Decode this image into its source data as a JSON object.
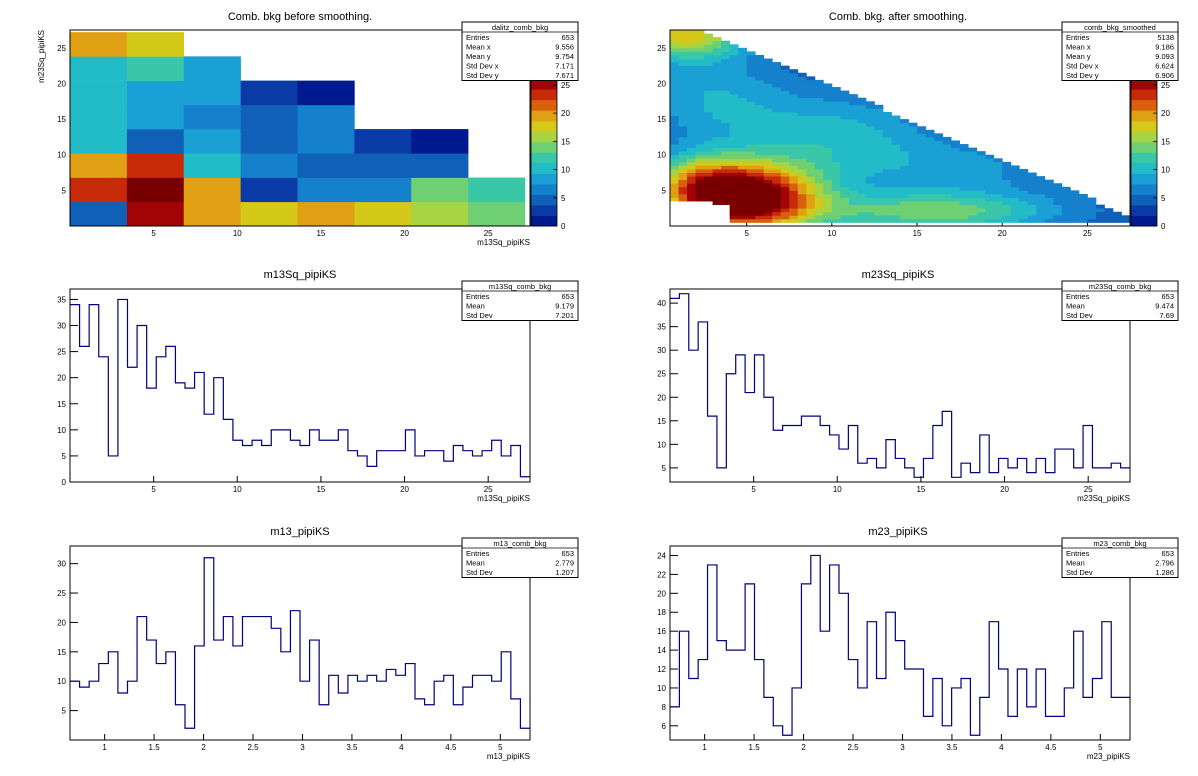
{
  "colors": {
    "hist_line": "#000080",
    "frame": "#000000",
    "palette": [
      "#01198f",
      "#0a3aa5",
      "#1060b8",
      "#1580cc",
      "#1aa0d5",
      "#22bcc8",
      "#3ac7a8",
      "#6fcf73",
      "#a6d443",
      "#d4c819",
      "#e0a013",
      "#d8600c",
      "#c62a08",
      "#a00405",
      "#780000"
    ]
  },
  "chart_data": [
    {
      "id": "dalitz",
      "type": "heatmap",
      "title": "Comb. bkg before smoothing.",
      "xlabel": "m13Sq_pipiKS",
      "ylabel": "m23Sq_pipiKS",
      "xlim": [
        0,
        27.5
      ],
      "ylim": [
        0,
        27.5
      ],
      "xticks": [
        "5",
        "10",
        "15",
        "20",
        "25"
      ],
      "yticks": [
        "5",
        "10",
        "15",
        "20",
        "25"
      ],
      "zlim": [
        0,
        28
      ],
      "zticks": [
        "0",
        "5",
        "10",
        "15",
        "20",
        "25"
      ],
      "bin_width": 3.4,
      "rows": [
        [
          4,
          26,
          20,
          18,
          19,
          18,
          16,
          14
        ],
        [
          24,
          28,
          20,
          3,
          7,
          6,
          14,
          12
        ],
        [
          19,
          23,
          11,
          7,
          5,
          5,
          4,
          null
        ],
        [
          11,
          4,
          8,
          5,
          7,
          2,
          1,
          null
        ],
        [
          10,
          8,
          7,
          4,
          7,
          null,
          null,
          null
        ],
        [
          10,
          8,
          9,
          3,
          1,
          null,
          null,
          null
        ],
        [
          11,
          12,
          9,
          null,
          null,
          null,
          null,
          null
        ],
        [
          20,
          18,
          null,
          null,
          null,
          null,
          null,
          null
        ]
      ],
      "stats": {
        "name": "dalitz_comb_bkg",
        "rows": [
          [
            "Entries",
            "653"
          ],
          [
            "Mean x",
            "9.556"
          ],
          [
            "Mean y",
            "9.754"
          ],
          [
            "Std Dev x",
            "7.171"
          ],
          [
            "Std Dev y",
            "7.671"
          ]
        ]
      }
    },
    {
      "id": "smoothed",
      "type": "heatmap",
      "title": "Comb. bkg. after smoothing.",
      "xlabel": "",
      "ylabel": "",
      "xlim": [
        0.5,
        27.5
      ],
      "ylim": [
        0,
        27.5
      ],
      "xticks": [
        "5",
        "10",
        "15",
        "20",
        "25"
      ],
      "yticks": [
        "5",
        "10",
        "15",
        "20",
        "25"
      ],
      "zlim": [
        0,
        28
      ],
      "zticks": [
        "0",
        "5",
        "10",
        "15",
        "20",
        "25"
      ],
      "stats": {
        "name": "comb_bkg_smoothed",
        "rows": [
          [
            "Entries",
            "5138"
          ],
          [
            "Mean x",
            "9.186"
          ],
          [
            "Mean y",
            "9.093"
          ],
          [
            "Std Dev x",
            "6.624"
          ],
          [
            "Std Dev y",
            "6.906"
          ]
        ]
      }
    },
    {
      "id": "m13Sq",
      "type": "histogram",
      "title": "m13Sq_pipiKS",
      "xlabel": "m13Sq_pipiKS",
      "xlim": [
        0,
        27.5
      ],
      "ylim": [
        0,
        37
      ],
      "xticks": [
        "5",
        "10",
        "15",
        "20",
        "25"
      ],
      "yticks": [
        "0",
        "5",
        "10",
        "15",
        "20",
        "25",
        "30",
        "35"
      ],
      "values": [
        34,
        26,
        34,
        24,
        5,
        35,
        22,
        30,
        18,
        24,
        26,
        19,
        18,
        21,
        13,
        20,
        12,
        8,
        7,
        8,
        7,
        10,
        10,
        8,
        7,
        10,
        8,
        8,
        10,
        6,
        5,
        3,
        6,
        6,
        6,
        10,
        5,
        6,
        6,
        4,
        7,
        6,
        5,
        6,
        8,
        5,
        7,
        1
      ],
      "stats": {
        "name": "m13Sq_comb_bkg",
        "rows": [
          [
            "Entries",
            "653"
          ],
          [
            "Mean",
            "9.179"
          ],
          [
            "Std Dev",
            "7.201"
          ]
        ]
      }
    },
    {
      "id": "m23Sq",
      "type": "histogram",
      "title": "m23Sq_pipiKS",
      "xlabel": "m23Sq_pipiKS",
      "xlim": [
        0,
        27.5
      ],
      "ylim": [
        2,
        43
      ],
      "xticks": [
        "5",
        "10",
        "15",
        "20",
        "25"
      ],
      "yticks": [
        "5",
        "10",
        "15",
        "20",
        "25",
        "30",
        "35",
        "40"
      ],
      "values": [
        41,
        42,
        30,
        36,
        16,
        5,
        25,
        29,
        21,
        29,
        20,
        13,
        14,
        14,
        16,
        16,
        14,
        12,
        9,
        14,
        6,
        7,
        5,
        11,
        7,
        5,
        3,
        7,
        14,
        17,
        3,
        6,
        4,
        12,
        4,
        7,
        5,
        7,
        4,
        7,
        4,
        9,
        9,
        5,
        14,
        5,
        5,
        6,
        5
      ],
      "stats": {
        "name": "m23Sq_comb_bkg",
        "rows": [
          [
            "Entries",
            "653"
          ],
          [
            "Mean",
            "9.474"
          ],
          [
            "Std Dev",
            "7.69"
          ]
        ]
      }
    },
    {
      "id": "m13",
      "type": "histogram",
      "title": "m13_pipiKS",
      "xlabel": "m13_pipiKS",
      "xlim": [
        0.65,
        5.3
      ],
      "ylim": [
        0,
        33
      ],
      "xticks": [
        "1",
        "1.5",
        "2",
        "2.5",
        "3",
        "3.5",
        "4",
        "4.5",
        "5"
      ],
      "yticks": [
        "5",
        "10",
        "15",
        "20",
        "25",
        "30"
      ],
      "values": [
        10,
        9,
        10,
        13,
        15,
        8,
        10,
        21,
        17,
        13,
        15,
        6,
        2,
        16,
        31,
        17,
        21,
        16,
        21,
        21,
        21,
        19,
        15,
        22,
        10,
        17,
        6,
        11,
        8,
        11,
        10,
        11,
        10,
        12,
        11,
        13,
        7,
        6,
        10,
        11,
        6,
        9,
        11,
        11,
        10,
        15,
        7,
        2
      ],
      "stats": {
        "name": "m13_comb_bkg",
        "rows": [
          [
            "Entries",
            "653"
          ],
          [
            "Mean",
            "2.779"
          ],
          [
            "Std Dev",
            "1.207"
          ]
        ]
      }
    },
    {
      "id": "m23",
      "type": "histogram",
      "title": "m23_pipiKS",
      "xlabel": "m23_pipiKS",
      "xlim": [
        0.65,
        5.3
      ],
      "ylim": [
        4.5,
        25
      ],
      "xticks": [
        "1",
        "1.5",
        "2",
        "2.5",
        "3",
        "3.5",
        "4",
        "4.5",
        "5"
      ],
      "yticks": [
        "6",
        "8",
        "10",
        "12",
        "14",
        "16",
        "18",
        "20",
        "22",
        "24"
      ],
      "values": [
        8,
        16,
        11,
        13,
        23,
        15,
        14,
        14,
        21,
        13,
        9,
        6,
        5,
        10,
        21,
        24,
        16,
        23,
        20,
        13,
        10,
        17,
        11,
        18,
        15,
        12,
        12,
        7,
        11,
        6,
        10,
        11,
        5,
        9,
        17,
        12,
        7,
        12,
        8,
        12,
        7,
        7,
        10,
        16,
        9,
        11,
        17,
        9,
        9
      ],
      "stats": {
        "name": "m23_comb_bkg",
        "rows": [
          [
            "Entries",
            "653"
          ],
          [
            "Mean",
            "2.796"
          ],
          [
            "Std Dev",
            "1.286"
          ]
        ]
      }
    }
  ]
}
